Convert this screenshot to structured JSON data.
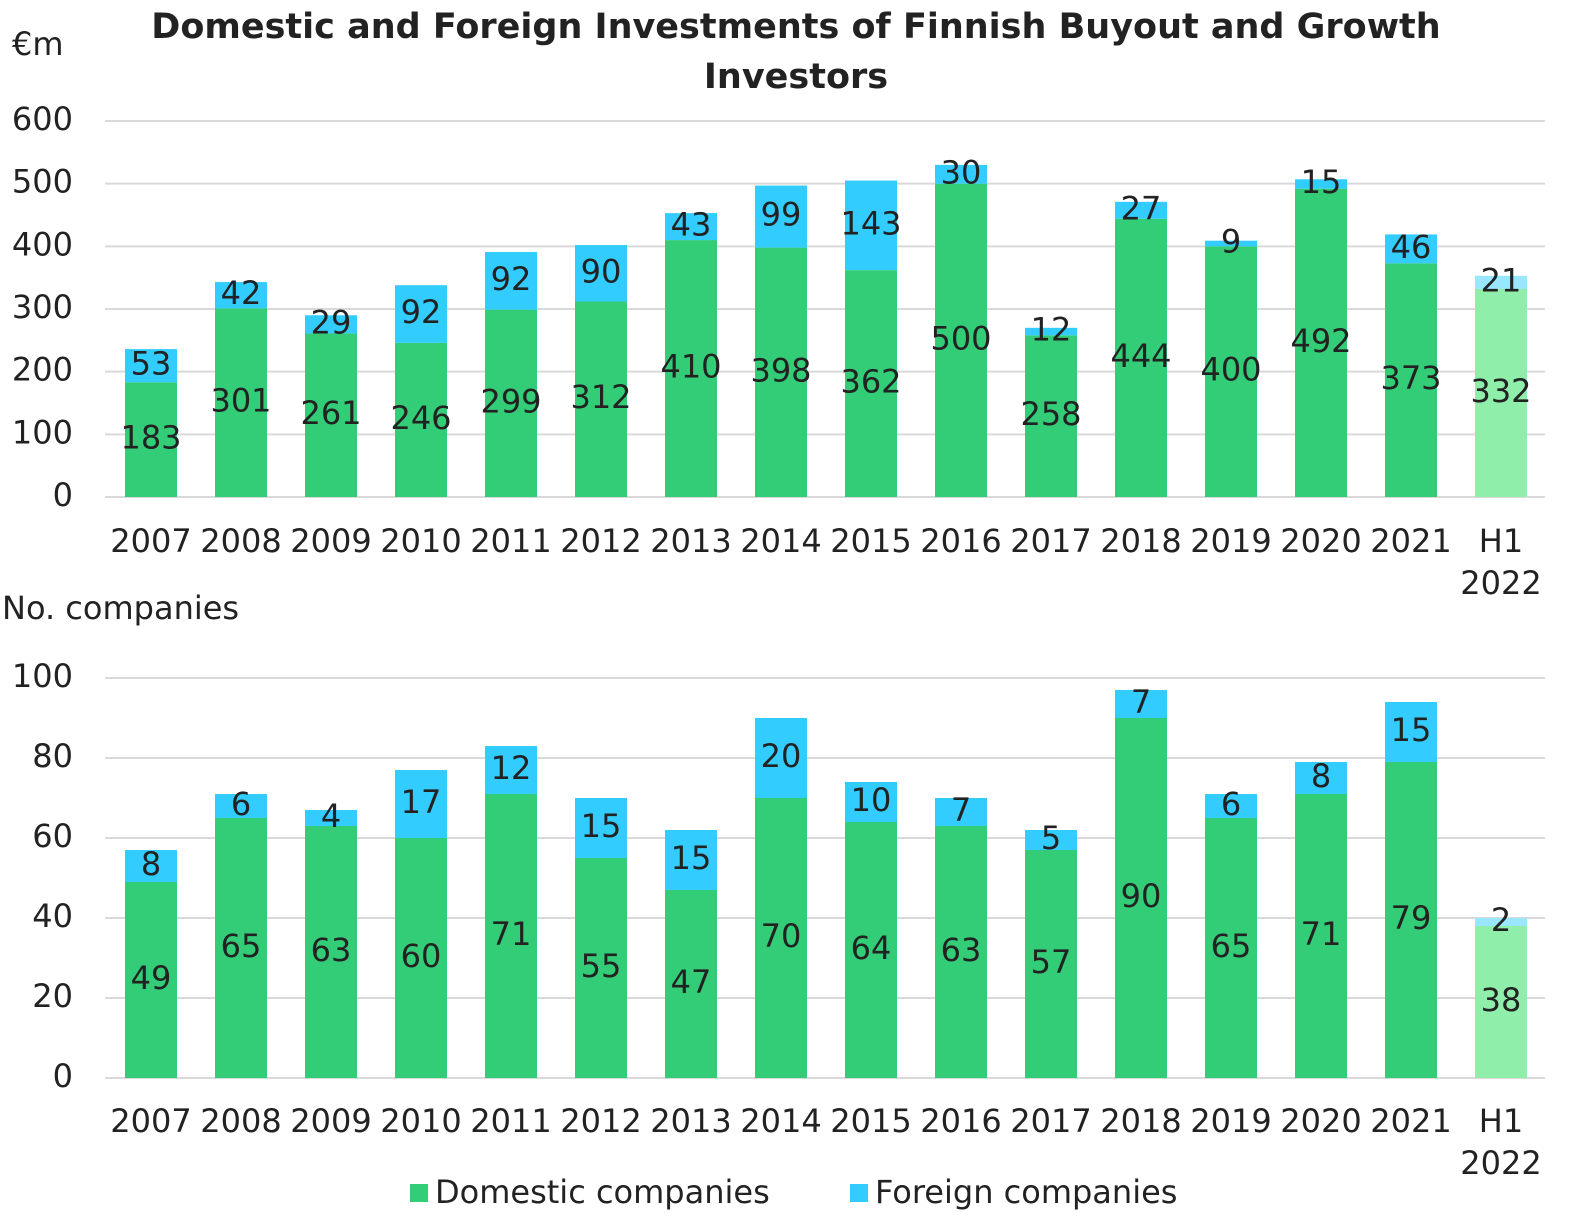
{
  "chart_data": [
    {
      "type": "bar",
      "stacked": true,
      "title": "Domestic and Foreign Investments of Finnish Buyout and Growth Investors",
      "y_label": "€m",
      "categories": [
        "2007",
        "2008",
        "2009",
        "2010",
        "2011",
        "2012",
        "2013",
        "2014",
        "2015",
        "2016",
        "2017",
        "2018",
        "2019",
        "2020",
        "2021",
        "H1 2022"
      ],
      "series": [
        {
          "colors": [
            "#33cc77",
            "#33cc77",
            "#33cc77",
            "#33cc77",
            "#33cc77",
            "#33cc77",
            "#33cc77",
            "#33cc77",
            "#33cc77",
            "#33cc77",
            "#33cc77",
            "#33cc77",
            "#33cc77",
            "#33cc77",
            "#33cc77",
            "#8eeeaa"
          ],
          "values": [
            183,
            301,
            261,
            246,
            299,
            312,
            410,
            398,
            362,
            500,
            258,
            444,
            400,
            492,
            373,
            332
          ]
        },
        {
          "colors": [
            "#33ccff",
            "#33ccff",
            "#33ccff",
            "#33ccff",
            "#33ccff",
            "#33ccff",
            "#33ccff",
            "#33ccff",
            "#33ccff",
            "#33ccff",
            "#33ccff",
            "#33ccff",
            "#33ccff",
            "#33ccff",
            "#33ccff",
            "#99e6ff"
          ],
          "values": [
            53,
            42,
            29,
            92,
            92,
            90,
            43,
            99,
            143,
            30,
            12,
            27,
            9,
            15,
            46,
            21
          ]
        }
      ],
      "ylim": [
        0,
        600
      ],
      "yticks": [
        0,
        100,
        200,
        300,
        400,
        500,
        600
      ],
      "grid": true
    },
    {
      "type": "bar",
      "stacked": true,
      "y_label": "No. companies",
      "categories": [
        "2007",
        "2008",
        "2009",
        "2010",
        "2011",
        "2012",
        "2013",
        "2014",
        "2015",
        "2016",
        "2017",
        "2018",
        "2019",
        "2020",
        "2021",
        "H1 2022"
      ],
      "series": [
        {
          "name": "Domestic companies",
          "color": "#33cc77",
          "colors": [
            "#33cc77",
            "#33cc77",
            "#33cc77",
            "#33cc77",
            "#33cc77",
            "#33cc77",
            "#33cc77",
            "#33cc77",
            "#33cc77",
            "#33cc77",
            "#33cc77",
            "#33cc77",
            "#33cc77",
            "#33cc77",
            "#33cc77",
            "#8eeeaa"
          ],
          "values": [
            49,
            65,
            63,
            60,
            71,
            55,
            47,
            70,
            64,
            63,
            57,
            90,
            65,
            71,
            79,
            38
          ]
        },
        {
          "name": "Foreign companies",
          "color": "#33ccff",
          "colors": [
            "#33ccff",
            "#33ccff",
            "#33ccff",
            "#33ccff",
            "#33ccff",
            "#33ccff",
            "#33ccff",
            "#33ccff",
            "#33ccff",
            "#33ccff",
            "#33ccff",
            "#33ccff",
            "#33ccff",
            "#33ccff",
            "#33ccff",
            "#99e6ff"
          ],
          "values": [
            8,
            6,
            4,
            17,
            12,
            15,
            15,
            20,
            10,
            7,
            5,
            7,
            6,
            8,
            15,
            2
          ]
        }
      ],
      "ylim": [
        0,
        100
      ],
      "yticks": [
        0,
        20,
        40,
        60,
        80,
        100
      ],
      "grid": true,
      "legend": "bottom"
    }
  ]
}
